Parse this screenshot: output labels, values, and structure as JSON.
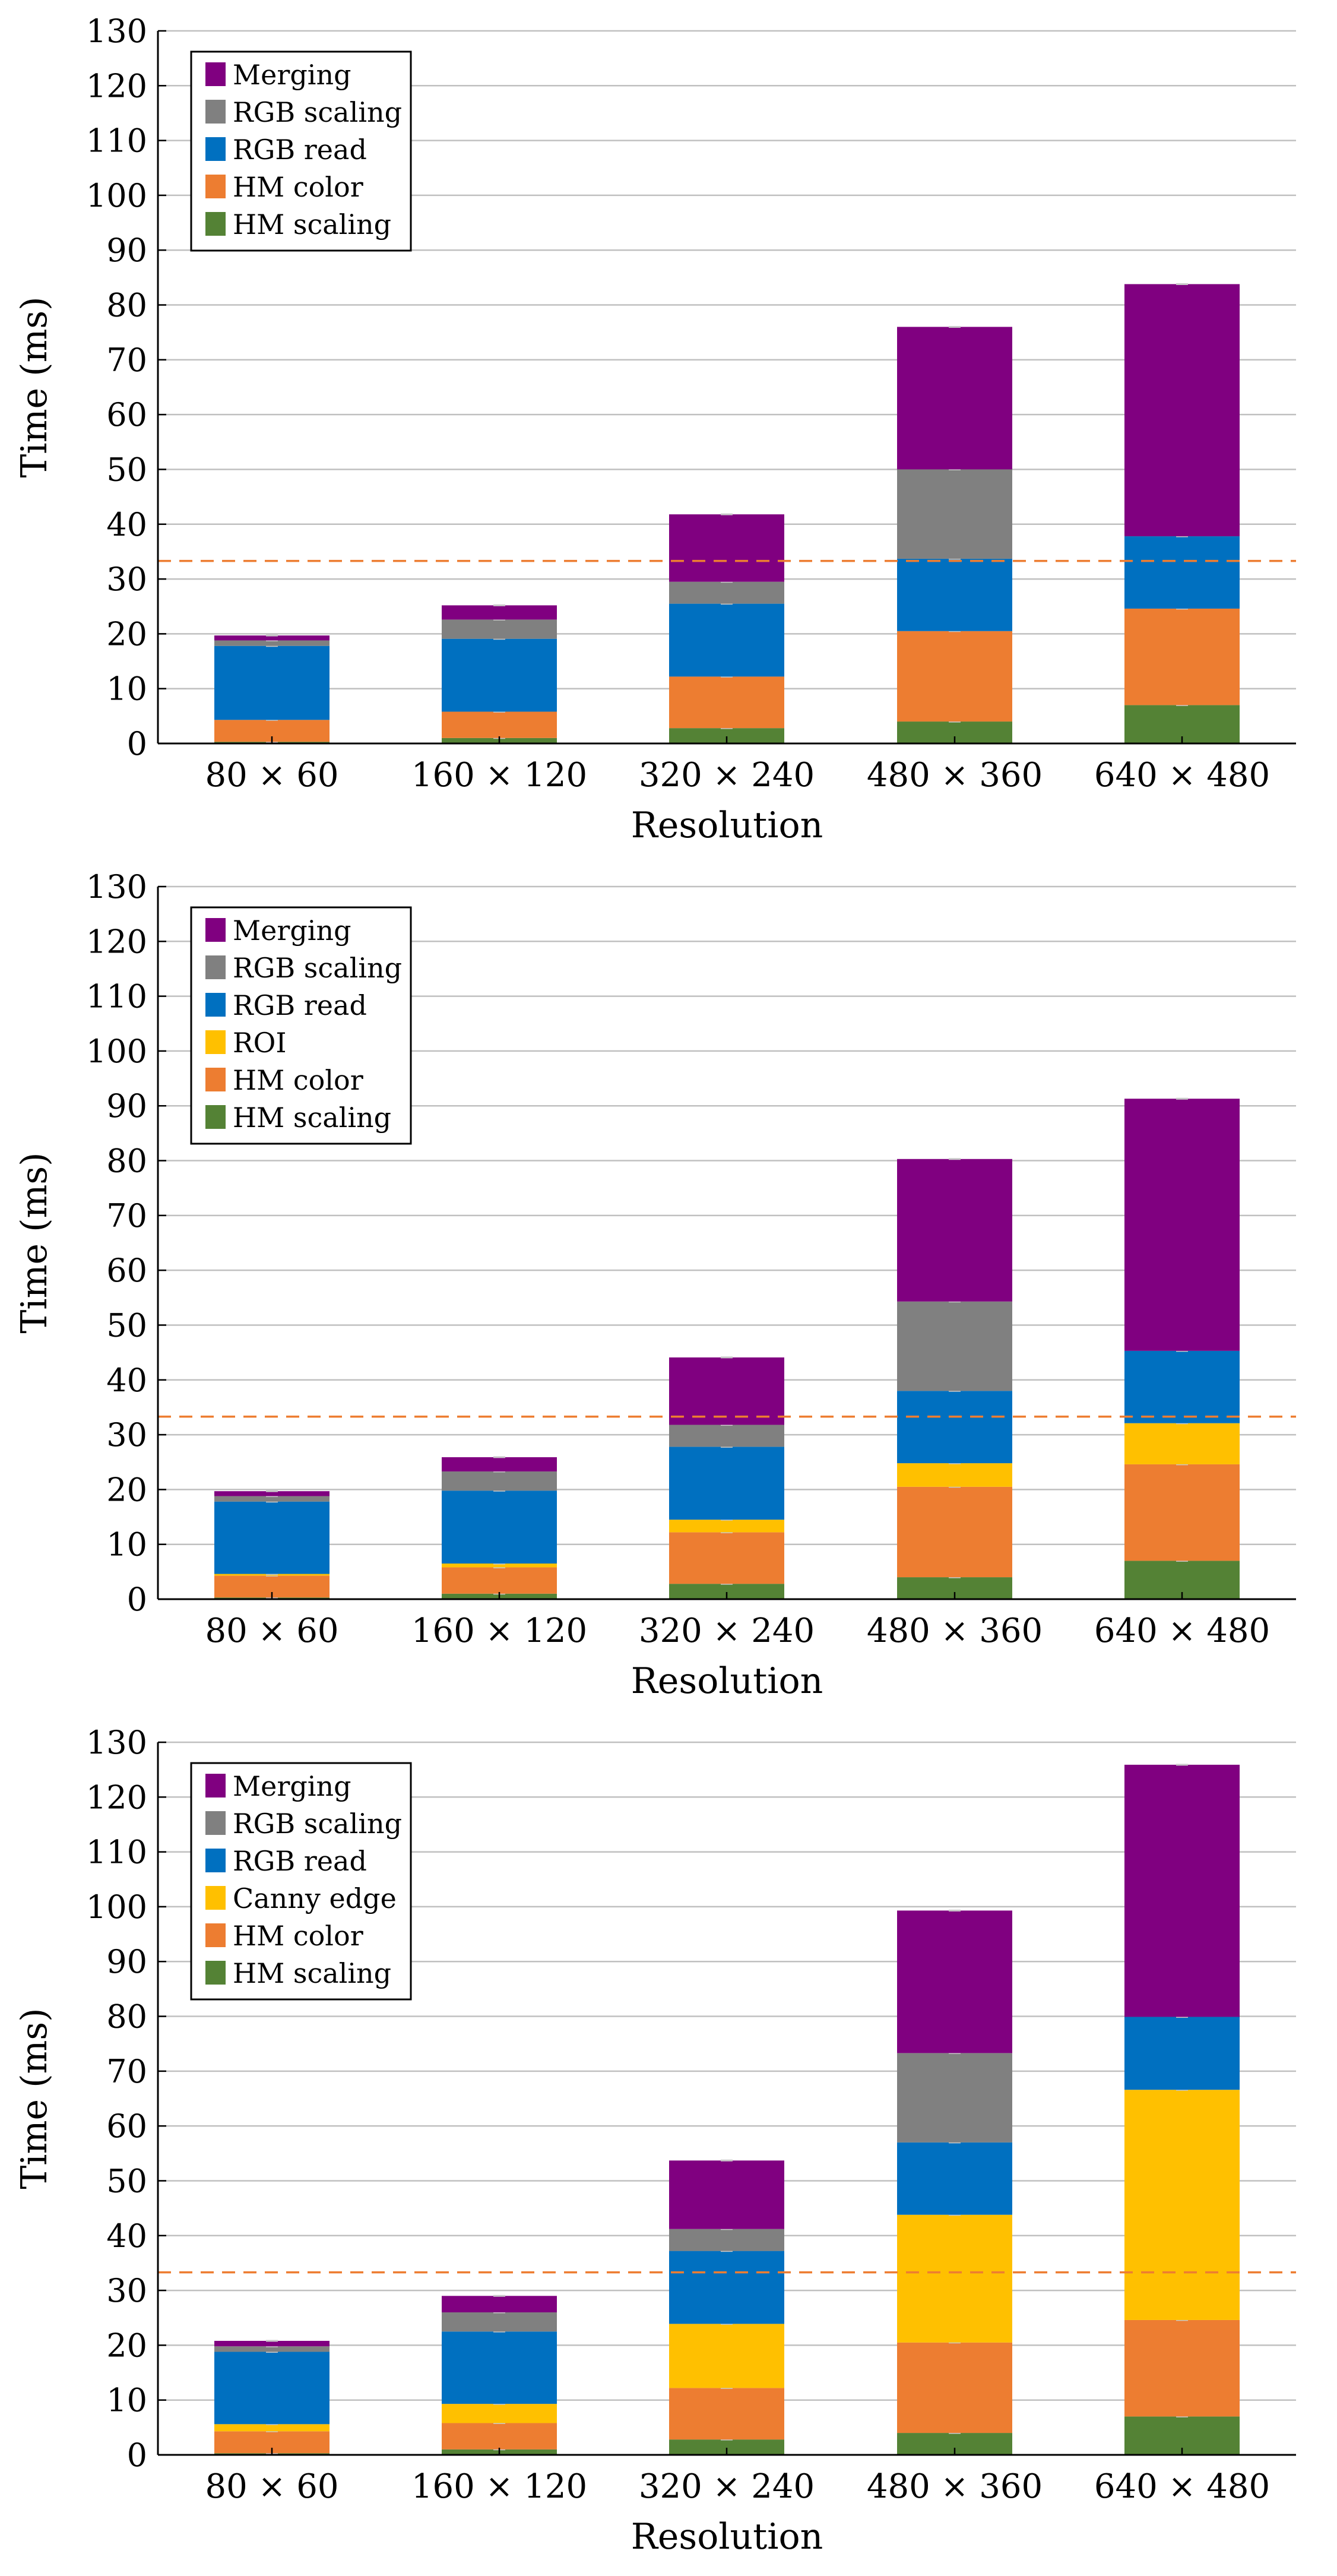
{
  "colors": {
    "Merging": "#800080",
    "RGB scaling": "#808080",
    "RGB read": "#0070c0",
    "ROI": "#ffc000",
    "Canny edge": "#ffc000",
    "HM color": "#ed7d31",
    "HM scaling": "#548235",
    "threshold": "#ed7d31",
    "grid": "#c0c0c0",
    "errorbar": "#c8c8c8"
  },
  "chart_data": [
    {
      "type": "bar",
      "stacked": true,
      "xlabel": "Resolution",
      "ylabel": "Time (ms)",
      "ylim": [
        0,
        130
      ],
      "yticks": [
        0,
        10,
        20,
        30,
        40,
        50,
        60,
        70,
        80,
        90,
        100,
        110,
        120,
        130
      ],
      "grid": true,
      "legend_position": "top-left",
      "threshold": 33.3,
      "categories": [
        "80 × 60",
        "160 × 120",
        "320 × 240",
        "480 × 360",
        "640 × 480"
      ],
      "legend_order": [
        "Merging",
        "RGB scaling",
        "RGB read",
        "HM color",
        "HM scaling"
      ],
      "series": [
        {
          "name": "HM scaling",
          "values": [
            0.3,
            1.0,
            2.8,
            4.0,
            7.0
          ]
        },
        {
          "name": "HM color",
          "values": [
            4.0,
            4.8,
            9.4,
            16.5,
            17.6
          ]
        },
        {
          "name": "RGB read",
          "values": [
            13.5,
            13.3,
            13.3,
            13.2,
            13.2
          ]
        },
        {
          "name": "RGB scaling",
          "values": [
            1.0,
            3.5,
            4.0,
            16.3,
            0.0
          ]
        },
        {
          "name": "Merging",
          "values": [
            0.9,
            2.6,
            12.3,
            26.0,
            46.0
          ]
        }
      ]
    },
    {
      "type": "bar",
      "stacked": true,
      "xlabel": "Resolution",
      "ylabel": "Time (ms)",
      "ylim": [
        0,
        130
      ],
      "yticks": [
        0,
        10,
        20,
        30,
        40,
        50,
        60,
        70,
        80,
        90,
        100,
        110,
        120,
        130
      ],
      "grid": true,
      "legend_position": "top-left",
      "threshold": 33.3,
      "categories": [
        "80 × 60",
        "160 × 120",
        "320 × 240",
        "480 × 360",
        "640 × 480"
      ],
      "legend_order": [
        "Merging",
        "RGB scaling",
        "RGB read",
        "ROI",
        "HM color",
        "HM scaling"
      ],
      "series": [
        {
          "name": "HM scaling",
          "values": [
            0.3,
            1.0,
            2.8,
            4.0,
            7.0
          ]
        },
        {
          "name": "HM color",
          "values": [
            4.0,
            4.8,
            9.4,
            16.5,
            17.6
          ]
        },
        {
          "name": "ROI",
          "values": [
            0.3,
            0.7,
            2.3,
            4.3,
            7.5
          ]
        },
        {
          "name": "RGB read",
          "values": [
            13.2,
            13.3,
            13.3,
            13.2,
            13.2
          ]
        },
        {
          "name": "RGB scaling",
          "values": [
            1.0,
            3.5,
            4.0,
            16.3,
            0.0
          ]
        },
        {
          "name": "Merging",
          "values": [
            0.9,
            2.6,
            12.3,
            26.0,
            46.0
          ]
        }
      ]
    },
    {
      "type": "bar",
      "stacked": true,
      "xlabel": "Resolution",
      "ylabel": "Time (ms)",
      "ylim": [
        0,
        130
      ],
      "yticks": [
        0,
        10,
        20,
        30,
        40,
        50,
        60,
        70,
        80,
        90,
        100,
        110,
        120,
        130
      ],
      "grid": true,
      "legend_position": "top-left",
      "threshold": 33.3,
      "categories": [
        "80 × 60",
        "160 × 120",
        "320 × 240",
        "480 × 360",
        "640 × 480"
      ],
      "legend_order": [
        "Merging",
        "RGB scaling",
        "RGB read",
        "Canny edge",
        "HM color",
        "HM scaling"
      ],
      "series": [
        {
          "name": "HM scaling",
          "values": [
            0.3,
            1.0,
            2.8,
            4.0,
            7.0
          ]
        },
        {
          "name": "HM color",
          "values": [
            4.0,
            4.8,
            9.4,
            16.5,
            17.6
          ]
        },
        {
          "name": "Canny edge",
          "values": [
            1.3,
            3.5,
            11.7,
            23.3,
            42.0
          ]
        },
        {
          "name": "RGB read",
          "values": [
            13.2,
            13.2,
            13.3,
            13.2,
            13.3
          ]
        },
        {
          "name": "RGB scaling",
          "values": [
            1.0,
            3.5,
            4.0,
            16.3,
            0.0
          ]
        },
        {
          "name": "Merging",
          "values": [
            1.0,
            3.0,
            12.5,
            26.0,
            46.0
          ]
        }
      ]
    }
  ]
}
